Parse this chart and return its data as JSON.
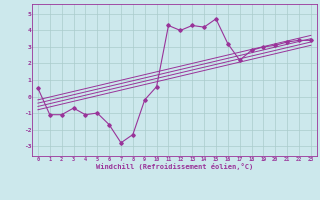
{
  "xlabel": "Windchill (Refroidissement éolien,°C)",
  "bg_color": "#cce8ec",
  "grid_color": "#aacccc",
  "line_color": "#993399",
  "xlim": [
    -0.5,
    23.5
  ],
  "ylim": [
    -3.6,
    5.6
  ],
  "yticks": [
    -3,
    -2,
    -1,
    0,
    1,
    2,
    3,
    4,
    5
  ],
  "xticks": [
    0,
    1,
    2,
    3,
    4,
    5,
    6,
    7,
    8,
    9,
    10,
    11,
    12,
    13,
    14,
    15,
    16,
    17,
    18,
    19,
    20,
    21,
    22,
    23
  ],
  "zigzag_x": [
    0,
    1,
    2,
    3,
    4,
    5,
    6,
    7,
    8,
    9,
    10,
    11,
    12,
    13,
    14,
    15,
    16,
    17,
    18,
    19,
    20,
    21,
    22,
    23
  ],
  "zigzag_y": [
    0.5,
    -1.1,
    -1.1,
    -0.7,
    -1.1,
    -1.0,
    -1.7,
    -2.8,
    -2.3,
    -0.2,
    0.6,
    4.3,
    4.0,
    4.3,
    4.2,
    4.7,
    3.2,
    2.2,
    2.8,
    3.0,
    3.1,
    3.3,
    3.4,
    3.4
  ],
  "line1_y0": -0.8,
  "line1_y1": 3.1,
  "line2_y0": -0.6,
  "line2_y1": 3.3,
  "line3_y0": -0.4,
  "line3_y1": 3.5,
  "line4_y0": -0.2,
  "line4_y1": 3.7
}
